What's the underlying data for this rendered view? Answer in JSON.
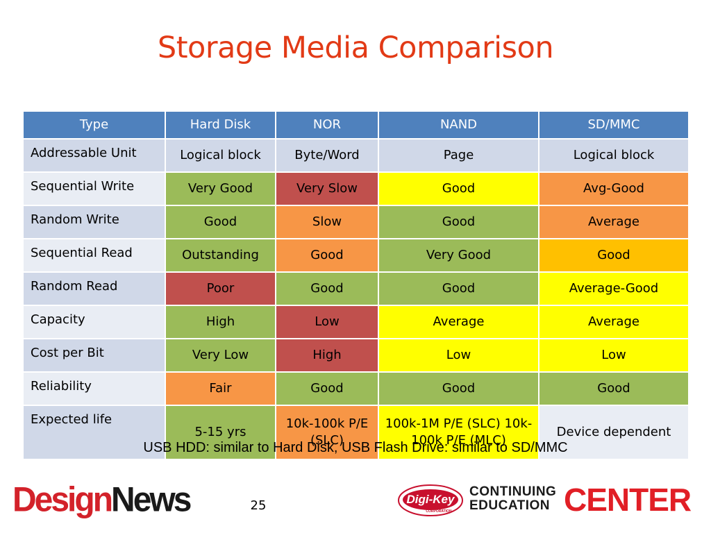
{
  "slide": {
    "title": "Storage Media Comparison",
    "footnote": "USB HDD: similar to Hard Disk, USB Flash Drive: similar to SD/MMC",
    "page_number": "25"
  },
  "logos": {
    "design_news_left": "Design",
    "design_news_right": "News",
    "digikey": "Digi-Key",
    "digikey_sub": "CORPORATION",
    "cec_line1": "CONTINUING",
    "cec_line2": "EDUCATION",
    "cec_big": "CENTER"
  },
  "table": {
    "headers": [
      "Type",
      "Hard Disk",
      "NOR",
      "NAND",
      "SD/MMC"
    ],
    "rows": [
      {
        "label": "Addressable Unit",
        "cells": [
          "Logical block",
          "Byte/Word",
          "Page",
          "Logical block"
        ]
      },
      {
        "label": "Sequential Write",
        "cells": [
          "Very Good",
          "Very Slow",
          "Good",
          "Avg-Good"
        ]
      },
      {
        "label": "Random Write",
        "cells": [
          "Good",
          "Slow",
          "Good",
          "Average"
        ]
      },
      {
        "label": "Sequential Read",
        "cells": [
          "Outstanding",
          "Good",
          "Very Good",
          "Good"
        ]
      },
      {
        "label": "Random Read",
        "cells": [
          "Poor",
          "Good",
          "Good",
          "Average-Good"
        ]
      },
      {
        "label": "Capacity",
        "cells": [
          "High",
          "Low",
          "Average",
          "Average"
        ]
      },
      {
        "label": "Cost per Bit",
        "cells": [
          "Very Low",
          "High",
          "Low",
          "Low"
        ]
      },
      {
        "label": "Reliability",
        "cells": [
          "Fair",
          "Good",
          "Good",
          "Good"
        ]
      },
      {
        "label": "Expected life",
        "cells": [
          "5-15 yrs",
          "10k-100k P/E (SLC)",
          "100k-1M P/E (SLC) 10k-100k P/E (MLC)",
          "Device dependent"
        ]
      }
    ]
  },
  "colors": {
    "title": "#e23a16",
    "header_bg": "#4f81bd",
    "green": "#9bbb59",
    "red": "#c0504d",
    "orange": "#f79646",
    "yellow": "#ffff00",
    "gold": "#ffc000"
  }
}
